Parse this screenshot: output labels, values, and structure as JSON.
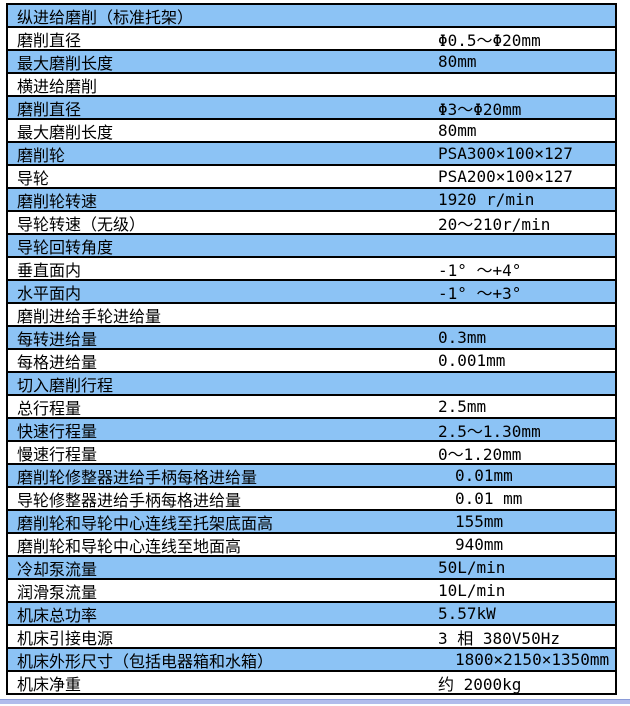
{
  "page": {
    "background_color": "#ffffff",
    "bottom_strip_color": "#b2bcec"
  },
  "table": {
    "row_color_blue": "#8cc3f5",
    "row_color_white": "#ffffff",
    "border_color": "#000000",
    "spellcheck_underline_color": "#c868c8",
    "rows": [
      {
        "label": "纵进给磨削（标准托架）",
        "value": ""
      },
      {
        "label": "磨削直径",
        "value": "Φ0.5～Φ20mm"
      },
      {
        "label": "最大磨削长度",
        "value": "80mm"
      },
      {
        "label": "横进给磨削",
        "value": ""
      },
      {
        "label": "磨削直径",
        "value": "Φ3～Φ",
        "value_marked": "20mm"
      },
      {
        "label": "最大磨削长度",
        "value": "80mm"
      },
      {
        "label": "磨削轮",
        "value": "PSA300×100×127"
      },
      {
        "label": "导轮",
        "value": "PSA200×100×127"
      },
      {
        "label": "磨削轮转速",
        "value": "1920 r/min"
      },
      {
        "label": "导轮转速（无级）",
        "value": "20～210r/min"
      },
      {
        "label": "导轮回转角度",
        "value": ""
      },
      {
        "label": "垂直面内",
        "value": "-1° ～+4°"
      },
      {
        "label": "水平面内",
        "value": "-1° ～+3°"
      },
      {
        "label": "磨削进给手轮进给量",
        "value": ""
      },
      {
        "label": "每转进给量",
        "value": "0.3mm"
      },
      {
        "label": "每格进给量",
        "value": "0.001mm"
      },
      {
        "label": "切入磨削行程",
        "value": ""
      },
      {
        "label": "总行程量",
        "value": "2.5mm"
      },
      {
        "label": "快速行程量",
        "value": "2.5～1.30mm"
      },
      {
        "label": "慢速行程量",
        "value": "0～1.20mm"
      },
      {
        "label": "磨削轮修整器进给手柄每格进给量",
        "value": "0.01mm",
        "indent": true
      },
      {
        "label": "导轮修整器进给手柄每格进给量",
        "value": "0.01 mm",
        "indent": true
      },
      {
        "label": "磨削轮和导轮中心连线至托架底面高",
        "value": "155mm",
        "indent": true
      },
      {
        "label": "磨削轮和导轮中心连线至地面高",
        "value": "940mm",
        "indent": true
      },
      {
        "label": "冷却泵流量",
        "value": "50L/min"
      },
      {
        "label": "润滑泵流量",
        "value": "10L/min"
      },
      {
        "label": "机床总功率",
        "value": "5.57kW"
      },
      {
        "label": "机床引接电源",
        "value": "3 相 380V50Hz"
      },
      {
        "label": "机床外形尺寸（包括电器箱和水箱）",
        "value": "1800×2150×1350mm",
        "indent": true
      },
      {
        "label": "机床净重",
        "value": "约 2000kg"
      }
    ]
  }
}
